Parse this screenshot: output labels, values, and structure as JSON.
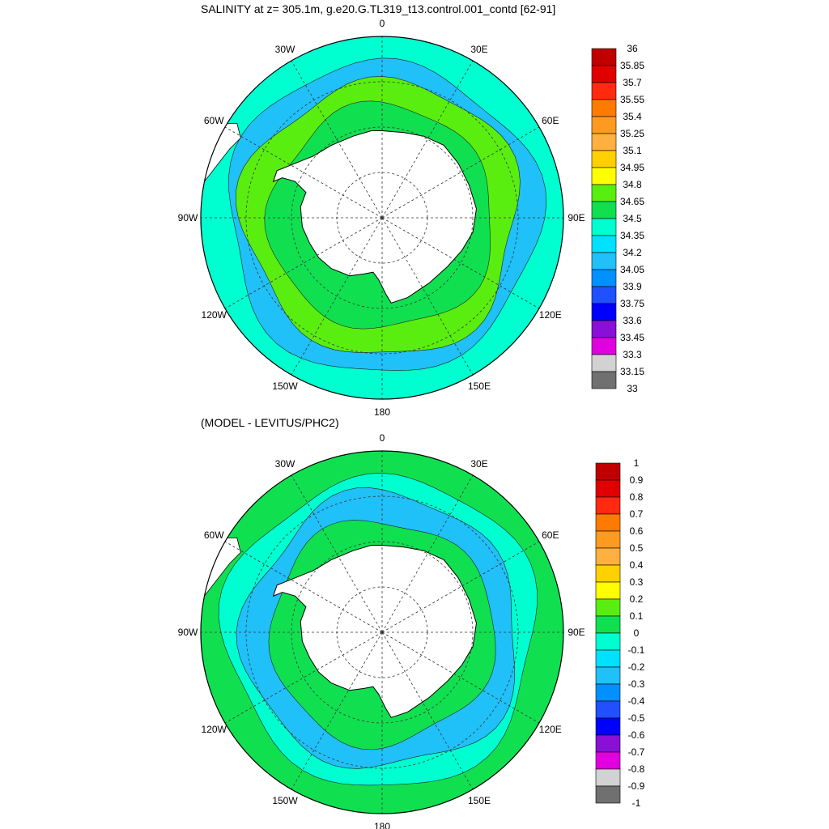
{
  "panels": [
    {
      "title": "SALINITY at z= 305.1m, g.e20.G.TL319_t13.control.001_contd [62-91]",
      "lon_labels": [
        "0",
        "30E",
        "60E",
        "90E",
        "120E",
        "150E",
        "180",
        "150W",
        "120W",
        "90W",
        "60W",
        "30W"
      ],
      "colorbar_labels": [
        "36",
        "35.85",
        "35.7",
        "35.55",
        "35.4",
        "35.25",
        "35.1",
        "34.95",
        "34.8",
        "34.65",
        "34.5",
        "34.35",
        "34.2",
        "34.05",
        "33.9",
        "33.75",
        "33.6",
        "33.45",
        "33.3",
        "33.15",
        "33"
      ],
      "colorbar_colors": [
        "#c00000",
        "#e00000",
        "#ff2a10",
        "#ff7a00",
        "#ff9a20",
        "#ffb040",
        "#ffd000",
        "#ffff00",
        "#5aee10",
        "#10e050",
        "#00ffd0",
        "#00e0ff",
        "#20c0f8",
        "#0090ff",
        "#2050ff",
        "#0000ff",
        "#8a10d8",
        "#e000e0",
        "#d2d2d2",
        "#707070"
      ],
      "field_colors": {
        "outer": "#00ffd0",
        "band": "#20c0f8",
        "ring": "#5aee10",
        "inner": "#10e050",
        "land": "#ffffff"
      }
    },
    {
      "title": "(MODEL - LEVITUS/PHC2)",
      "lon_labels": [
        "0",
        "30E",
        "60E",
        "90E",
        "120E",
        "150E",
        "180",
        "150W",
        "120W",
        "90W",
        "60W",
        "30W"
      ],
      "colorbar_labels": [
        "1",
        "0.9",
        "0.8",
        "0.7",
        "0.6",
        "0.5",
        "0.4",
        "0.3",
        "0.2",
        "0.1",
        "0",
        "-0.1",
        "-0.2",
        "-0.3",
        "-0.4",
        "-0.5",
        "-0.6",
        "-0.7",
        "-0.8",
        "-0.9",
        "-1"
      ],
      "colorbar_colors": [
        "#c00000",
        "#e00000",
        "#ff2a10",
        "#ff7a00",
        "#ff9a20",
        "#ffb040",
        "#ffd000",
        "#ffff00",
        "#5aee10",
        "#10e050",
        "#00ffd0",
        "#00e0ff",
        "#20c0f8",
        "#0090ff",
        "#2050ff",
        "#0000ff",
        "#8a10d8",
        "#e000e0",
        "#d2d2d2",
        "#707070"
      ],
      "field_colors": {
        "outer": "#10e050",
        "band": "#00ffd0",
        "ring": "#20c0f8",
        "inner": "#10e050",
        "land": "#ffffff"
      }
    }
  ]
}
